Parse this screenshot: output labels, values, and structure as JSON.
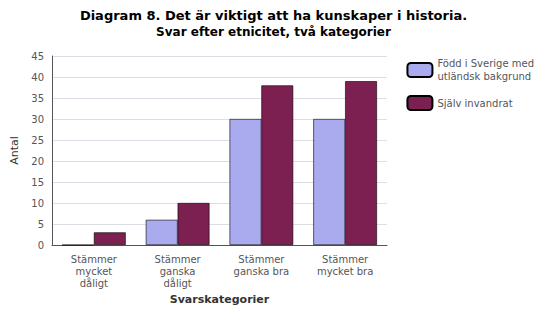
{
  "chart_data": {
    "type": "bar",
    "title": "Diagram 8. Det är viktigt att ha kunskaper i historia.",
    "subtitle": "Svar efter etnicitet, två kategorier",
    "categories": [
      "Stämmer\nmycket\ndåligt",
      "Stämmer\nganska\ndåligt",
      "Stämmer\nganska bra",
      "Stämmer\nmycket bra"
    ],
    "series": [
      {
        "name": "Född i Sverige med\nutländsk bakgrund",
        "color": "#aaaaee",
        "values": [
          0,
          6,
          30,
          30
        ]
      },
      {
        "name": "Själv invandrat",
        "color": "#7b2050",
        "values": [
          3,
          10,
          38,
          39
        ]
      }
    ],
    "xlabel": "Svarskategorier",
    "ylabel": "Antal",
    "ylim": [
      0,
      45
    ],
    "yticks": [
      0,
      5,
      10,
      15,
      20,
      25,
      30,
      35,
      40,
      45
    ],
    "grid": true,
    "legend": "right"
  }
}
